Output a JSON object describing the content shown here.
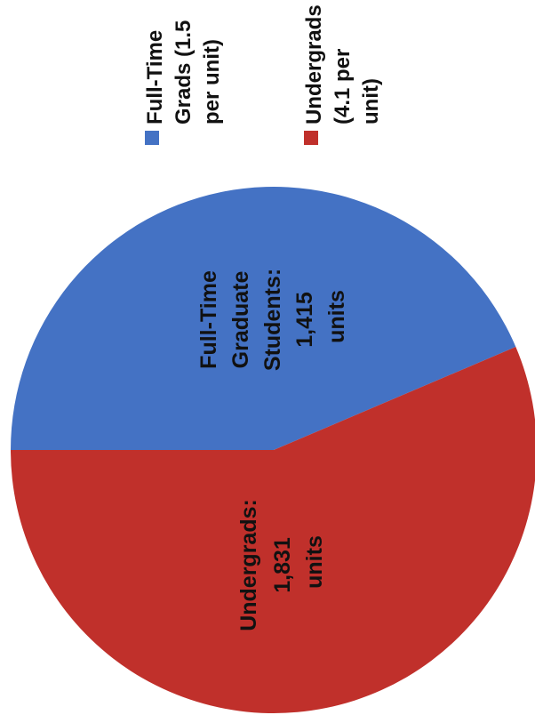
{
  "chart_data": {
    "type": "pie",
    "orientation": "rotated-90-counterclockwise",
    "categories": [
      "Full-Time Graduate Students",
      "Undergrads"
    ],
    "values": [
      1415,
      1831
    ],
    "unit": "units",
    "colors": [
      "#4472C4",
      "#C0302B"
    ],
    "slice_labels": [
      [
        "Full-Time",
        "Graduate",
        "Students:",
        "1,415",
        "units"
      ],
      [
        "Undergrads:",
        "1,831",
        "units"
      ]
    ],
    "legend": {
      "placement": "top",
      "entries": [
        {
          "lines": [
            "Full-Time",
            "Grads (1.5",
            "per unit)"
          ],
          "color": "#4472C4"
        },
        {
          "lines": [
            "Undergrads",
            "(4.1 per",
            "unit)"
          ],
          "color": "#C0302B"
        }
      ]
    }
  }
}
